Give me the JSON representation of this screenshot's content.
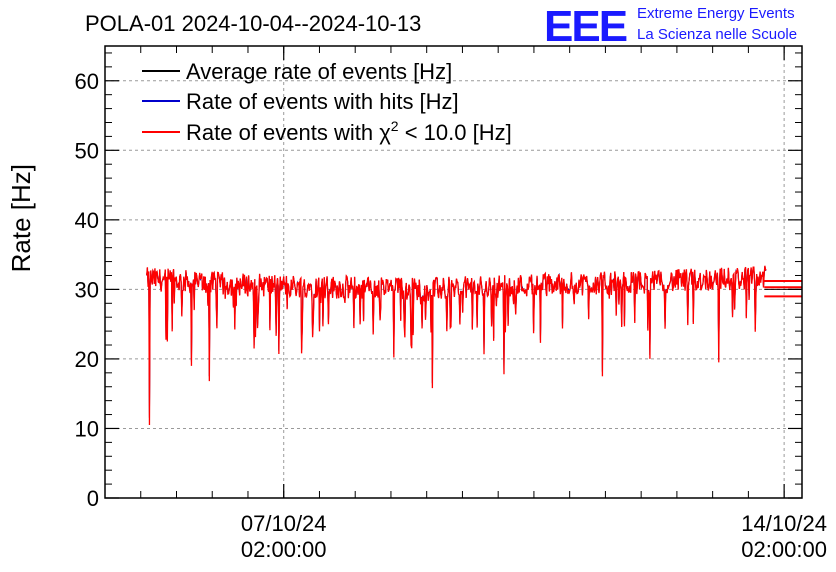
{
  "header": {
    "title": "POLA-01 2024-10-04--2024-10-13"
  },
  "logo": {
    "letters": "EEE",
    "line1": "Extreme Energy Events",
    "line2": "La Scienza nelle Scuole"
  },
  "colors": {
    "average": "#000000",
    "hits": "#0000cc",
    "chi2": "#ff0000",
    "logo": "#1a1aff"
  },
  "chart_data": {
    "type": "line",
    "title": "POLA-01 2024-10-04--2024-10-13",
    "ylabel": "Rate [Hz]",
    "xlabel": "",
    "ylim": [
      0,
      65
    ],
    "xlim": [
      "2024-10-04 14:00:00",
      "2024-10-14 08:00:00"
    ],
    "grid": true,
    "legend_position": "top-left",
    "y_ticks": [
      "0",
      "10",
      "20",
      "30",
      "40",
      "50",
      "60"
    ],
    "x_ticks": [
      {
        "date": "2024-10-07 02:00:00",
        "line1": "07/10/24",
        "line2": "02:00:00"
      },
      {
        "date": "2024-10-14 02:00:00",
        "line1": "14/10/24",
        "line2": "02:00:00"
      }
    ],
    "legend": [
      {
        "label": "Average rate of events [Hz]",
        "color": "#000000"
      },
      {
        "label": "Rate of events with hits [Hz]",
        "color": "#0000cc"
      },
      {
        "label_prefix": "Rate of events with ",
        "label_chi": "χ",
        "label_sup": "2",
        "label_suffix": " < 10.0 [Hz]",
        "color": "#ff0000"
      }
    ],
    "series": [
      {
        "name": "Average rate of events [Hz]",
        "color": "#000000",
        "trend": [
          [
            "2024-10-05 04:00",
            31.0
          ],
          [
            "2024-10-13 20:00",
            31.0
          ]
        ]
      },
      {
        "name": "Rate of events with hits [Hz]",
        "color": "#0000cc",
        "trend": [
          [
            "2024-10-05 04:00",
            31.0
          ],
          [
            "2024-10-13 20:00",
            31.0
          ]
        ]
      },
      {
        "name": "Rate of events with χ2 < 10.0 [Hz]",
        "color": "#ff0000",
        "start": "2024-10-05 04:00:00",
        "end": "2024-10-13 20:00:00",
        "trend": [
          [
            "2024-10-05 04:00",
            31.5
          ],
          [
            "2024-10-06 04:00",
            30.8
          ],
          [
            "2024-10-07 04:00",
            30.5
          ],
          [
            "2024-10-08 04:00",
            30.2
          ],
          [
            "2024-10-09 04:00",
            30.0
          ],
          [
            "2024-10-10 04:00",
            30.5
          ],
          [
            "2024-10-11 04:00",
            30.8
          ],
          [
            "2024-10-12 04:00",
            31.0
          ],
          [
            "2024-10-13 04:00",
            31.5
          ],
          [
            "2024-10-13 20:00",
            31.7
          ]
        ],
        "dips": [
          [
            "2024-10-05 05:00",
            10.5
          ],
          [
            "2024-10-05 11:00",
            22.5
          ],
          [
            "2024-10-05 19:00",
            19.0
          ],
          [
            "2024-10-06 01:00",
            16.8
          ],
          [
            "2024-10-06 16:00",
            21.5
          ],
          [
            "2024-10-07 08:00",
            20.8
          ],
          [
            "2024-10-08 15:00",
            20.2
          ],
          [
            "2024-10-09 04:00",
            15.8
          ],
          [
            "2024-10-10 04:00",
            17.8
          ],
          [
            "2024-10-11 13:00",
            17.5
          ],
          [
            "2024-10-12 05:00",
            20.0
          ],
          [
            "2024-10-13 04:00",
            19.5
          ]
        ],
        "tail": [
          [
            "2024-10-13 20:00",
            31.2
          ],
          [
            "2024-10-13 20:00",
            30.3
          ],
          [
            "2024-10-13 20:00",
            29.0
          ]
        ]
      }
    ]
  }
}
